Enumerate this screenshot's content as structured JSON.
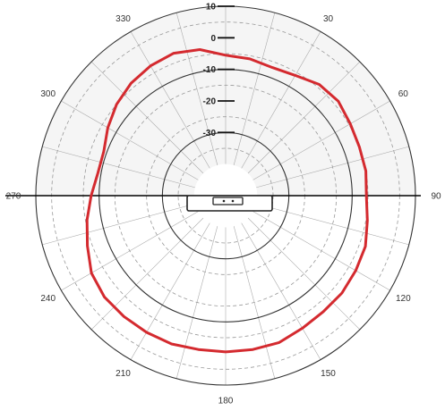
{
  "chart_data": {
    "type": "polar-line",
    "title": "",
    "angle_unit": "degrees",
    "angle_ticks": [
      0,
      30,
      60,
      90,
      120,
      150,
      180,
      210,
      240,
      270,
      300,
      330
    ],
    "angle_tick_labels": [
      "",
      "30",
      "60",
      "90",
      "120",
      "150",
      "180",
      "210",
      "240",
      "270",
      "300",
      "330"
    ],
    "radial_unit": "dB",
    "radial_range": [
      -50,
      10
    ],
    "radial_ticks": [
      10,
      0,
      -10,
      -20,
      -30
    ],
    "radial_tick_labels": [
      "10",
      "0",
      "-10",
      "-20",
      "-30"
    ],
    "grid": true,
    "series": [
      {
        "color": "#d42a2f",
        "points": [
          [
            0,
            -5.5
          ],
          [
            10,
            -6
          ],
          [
            20,
            -6.8
          ],
          [
            30,
            -6
          ],
          [
            40,
            -4
          ],
          [
            50,
            -3.5
          ],
          [
            60,
            -4.5
          ],
          [
            70,
            -5
          ],
          [
            80,
            -5
          ],
          [
            90,
            -5.5
          ],
          [
            100,
            -4.5
          ],
          [
            110,
            -3
          ],
          [
            120,
            -2.5
          ],
          [
            130,
            -2
          ],
          [
            140,
            -2
          ],
          [
            150,
            -1.5
          ],
          [
            160,
            -0.5
          ],
          [
            170,
            -0.5
          ],
          [
            180,
            -0.5
          ],
          [
            190,
            -0.5
          ],
          [
            200,
            0
          ],
          [
            210,
            0
          ],
          [
            220,
            0
          ],
          [
            230,
            0
          ],
          [
            240,
            -1
          ],
          [
            250,
            -3.5
          ],
          [
            260,
            -5.5
          ],
          [
            270,
            -7.5
          ],
          [
            280,
            -9
          ],
          [
            290,
            -9
          ],
          [
            300,
            -7
          ],
          [
            310,
            -5
          ],
          [
            320,
            -3.5
          ],
          [
            330,
            -2.5
          ],
          [
            340,
            -2
          ],
          [
            350,
            -3
          ]
        ]
      }
    ],
    "colors": {
      "trace": "#d42a2f",
      "grid_solid": "#333333",
      "grid_dashed": "#999999",
      "disc_fill": "#f5f5f5",
      "horizon": "#000000"
    }
  }
}
